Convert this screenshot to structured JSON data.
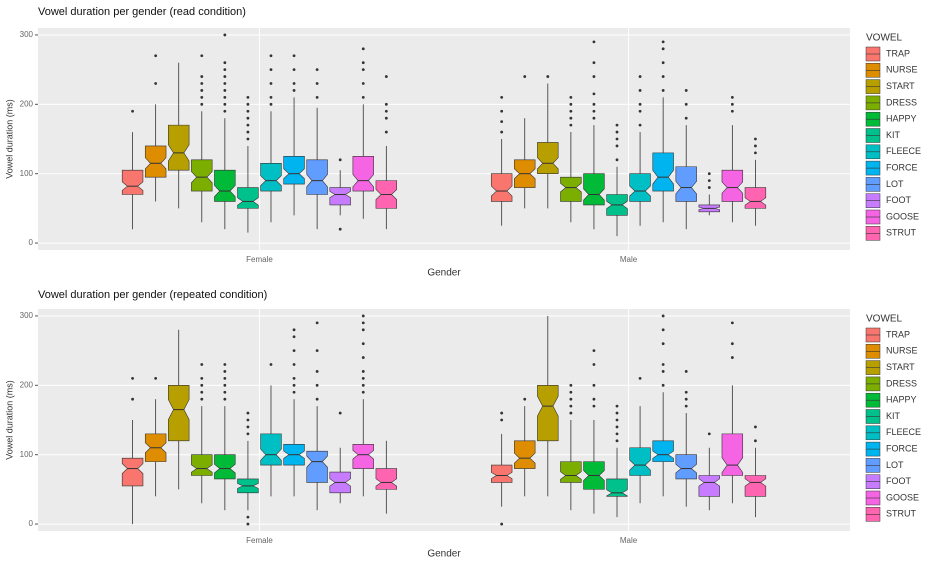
{
  "chart_data": [
    {
      "type": "boxplot",
      "title": "Vowel duration per gender (read condition)",
      "x_label": "Gender",
      "y_label": "Vowel duration (ms)",
      "categories": [
        "Female",
        "Male"
      ],
      "ylim": [
        -10,
        310
      ],
      "yticks": [
        0,
        100,
        200,
        300
      ],
      "grid": true,
      "legend_title": "VOWEL",
      "legend": "right",
      "series": [
        {
          "name": "TRAP",
          "color": "#F8766D",
          "values": [
            [
              20,
              70,
              82,
              105,
              160
            ],
            [
              25,
              60,
              75,
              100,
              150
            ]
          ],
          "outliers": [
            [
              190
            ],
            [
              160,
              175,
              190,
              210
            ]
          ]
        },
        {
          "name": "NURSE",
          "color": "#DE8C00",
          "values": [
            [
              60,
              95,
              115,
              140,
              200
            ],
            [
              50,
              80,
              100,
              120,
              180
            ]
          ],
          "outliers": [
            [
              230,
              270
            ],
            [
              240
            ]
          ]
        },
        {
          "name": "START",
          "color": "#B79F00",
          "values": [
            [
              50,
              105,
              130,
              170,
              260
            ],
            [
              50,
              100,
              115,
              145,
              230
            ]
          ],
          "outliers": [
            [],
            [
              240
            ]
          ]
        },
        {
          "name": "DRESS",
          "color": "#7CAE00",
          "values": [
            [
              30,
              75,
              95,
              120,
              190
            ],
            [
              30,
              60,
              80,
              95,
              160
            ]
          ],
          "outliers": [
            [
              200,
              210,
              220,
              230,
              240,
              270
            ],
            [
              170,
              180,
              190,
              200,
              210
            ]
          ]
        },
        {
          "name": "HAPPY",
          "color": "#00BA38",
          "values": [
            [
              20,
              60,
              75,
              105,
              180
            ],
            [
              20,
              55,
              70,
              100,
              170
            ]
          ],
          "outliers": [
            [
              190,
              200,
              210,
              220,
              230,
              240,
              250,
              260,
              300
            ],
            [
              180,
              190,
              200,
              215,
              240,
              260,
              290
            ]
          ]
        },
        {
          "name": "KIT",
          "color": "#00C08B",
          "values": [
            [
              15,
              50,
              60,
              80,
              140
            ],
            [
              10,
              40,
              55,
              70,
              110
            ]
          ],
          "outliers": [
            [
              150,
              160,
              170,
              180,
              190,
              200,
              210
            ],
            [
              120,
              140,
              150,
              160,
              170
            ]
          ]
        },
        {
          "name": "FLEECE",
          "color": "#00BFC4",
          "values": [
            [
              30,
              75,
              90,
              115,
              190
            ],
            [
              25,
              60,
              75,
              100,
              160
            ]
          ],
          "outliers": [
            [
              200,
              210,
              230,
              250,
              270
            ],
            [
              170,
              190,
              200,
              220,
              240
            ]
          ]
        },
        {
          "name": "FORCE",
          "color": "#00B4F0",
          "values": [
            [
              40,
              85,
              100,
              125,
              210
            ],
            [
              30,
              75,
              95,
              130,
              210
            ]
          ],
          "outliers": [
            [
              220,
              230,
              250,
              270
            ],
            [
              220,
              240,
              260,
              280,
              290
            ]
          ]
        },
        {
          "name": "LOT",
          "color": "#619CFF",
          "values": [
            [
              20,
              70,
              90,
              120,
              195
            ],
            [
              20,
              60,
              80,
              110,
              170
            ]
          ],
          "outliers": [
            [
              210,
              230,
              250
            ],
            [
              180,
              200,
              220
            ]
          ]
        },
        {
          "name": "FOOT",
          "color": "#C77CFF",
          "values": [
            [
              40,
              55,
              70,
              80,
              105
            ],
            [
              40,
              45,
              50,
              55,
              70
            ]
          ],
          "outliers": [
            [
              20,
              120
            ],
            [
              80,
              90,
              100
            ]
          ]
        },
        {
          "name": "GOOSE",
          "color": "#F564E3",
          "values": [
            [
              35,
              75,
              90,
              125,
              200
            ],
            [
              30,
              60,
              80,
              105,
              170
            ]
          ],
          "outliers": [
            [
              210,
              230,
              250,
              260,
              280
            ],
            [
              190,
              200,
              210
            ]
          ]
        },
        {
          "name": "STRUT",
          "color": "#FF64B0",
          "values": [
            [
              20,
              50,
              70,
              90,
              140
            ],
            [
              25,
              50,
              60,
              80,
              120
            ]
          ],
          "outliers": [
            [
              160,
              180,
              190,
              200,
              240
            ],
            [
              130,
              140,
              150
            ]
          ]
        }
      ]
    },
    {
      "type": "boxplot",
      "title": "Vowel duration per gender (repeated condition)",
      "x_label": "Gender",
      "y_label": "Vowel duration (ms)",
      "categories": [
        "Female",
        "Male"
      ],
      "ylim": [
        -10,
        310
      ],
      "yticks": [
        0,
        100,
        200,
        300
      ],
      "grid": true,
      "legend_title": "VOWEL",
      "legend": "right",
      "series": [
        {
          "name": "TRAP",
          "color": "#F8766D",
          "values": [
            [
              0,
              55,
              80,
              95,
              150
            ],
            [
              25,
              60,
              70,
              85,
              130
            ]
          ],
          "outliers": [
            [
              180,
              210
            ],
            [
              0,
              150,
              160
            ]
          ]
        },
        {
          "name": "NURSE",
          "color": "#DE8C00",
          "values": [
            [
              40,
              90,
              110,
              130,
              180
            ],
            [
              40,
              80,
              95,
              120,
              170
            ]
          ],
          "outliers": [
            [
              210
            ],
            [
              180
            ]
          ]
        },
        {
          "name": "START",
          "color": "#B79F00",
          "values": [
            [
              50,
              120,
              165,
              200,
              280
            ],
            [
              40,
              120,
              170,
              200,
              300
            ]
          ],
          "outliers": [
            [],
            []
          ]
        },
        {
          "name": "DRESS",
          "color": "#7CAE00",
          "values": [
            [
              30,
              70,
              80,
              100,
              170
            ],
            [
              20,
              60,
              70,
              90,
              150
            ]
          ],
          "outliers": [
            [
              180,
              190,
              200,
              210,
              230
            ],
            [
              160,
              170,
              180,
              190,
              200
            ]
          ]
        },
        {
          "name": "HAPPY",
          "color": "#00BA38",
          "values": [
            [
              20,
              65,
              80,
              100,
              170
            ],
            [
              15,
              50,
              70,
              90,
              150
            ]
          ],
          "outliers": [
            [
              180,
              190,
              200,
              210,
              220,
              230
            ],
            [
              170,
              180,
              200,
              230,
              250
            ]
          ]
        },
        {
          "name": "KIT",
          "color": "#00C08B",
          "values": [
            [
              20,
              45,
              55,
              65,
              120
            ],
            [
              10,
              40,
              45,
              65,
              110
            ]
          ],
          "outliers": [
            [
              0,
              10,
              130,
              140,
              150,
              160
            ],
            [
              120,
              130,
              140,
              150,
              160,
              170
            ]
          ]
        },
        {
          "name": "FLEECE",
          "color": "#00BFC4",
          "values": [
            [
              40,
              85,
              100,
              130,
              200
            ],
            [
              30,
              70,
              85,
              110,
              170
            ]
          ],
          "outliers": [
            [
              230
            ],
            [
              210
            ]
          ]
        },
        {
          "name": "FORCE",
          "color": "#00B4F0",
          "values": [
            [
              40,
              85,
              100,
              115,
              180
            ],
            [
              40,
              90,
              100,
              120,
              190
            ]
          ],
          "outliers": [
            [
              190,
              200,
              210,
              230,
              250,
              270,
              280
            ],
            [
              200,
              220,
              230,
              260,
              280,
              300
            ]
          ]
        },
        {
          "name": "LOT",
          "color": "#619CFF",
          "values": [
            [
              20,
              60,
              90,
              105,
              170
            ],
            [
              25,
              65,
              80,
              100,
              160
            ]
          ],
          "outliers": [
            [
              180,
              200,
              220,
              250,
              290
            ],
            [
              170,
              180,
              190,
              220
            ]
          ]
        },
        {
          "name": "FOOT",
          "color": "#C77CFF",
          "values": [
            [
              30,
              45,
              60,
              75,
              110
            ],
            [
              20,
              40,
              60,
              70,
              110
            ]
          ],
          "outliers": [
            [
              160
            ],
            [
              130
            ]
          ]
        },
        {
          "name": "GOOSE",
          "color": "#F564E3",
          "values": [
            [
              40,
              80,
              100,
              115,
              180
            ],
            [
              30,
              70,
              85,
              130,
              200
            ]
          ],
          "outliers": [
            [
              190,
              200,
              210,
              220,
              240,
              260,
              280,
              290,
              300
            ],
            [
              240,
              260,
              290
            ]
          ]
        },
        {
          "name": "STRUT",
          "color": "#FF64B0",
          "values": [
            [
              15,
              50,
              60,
              80,
              120
            ],
            [
              10,
              40,
              60,
              70,
              110
            ]
          ],
          "outliers": [
            [],
            [
              120,
              140
            ]
          ]
        }
      ]
    }
  ]
}
